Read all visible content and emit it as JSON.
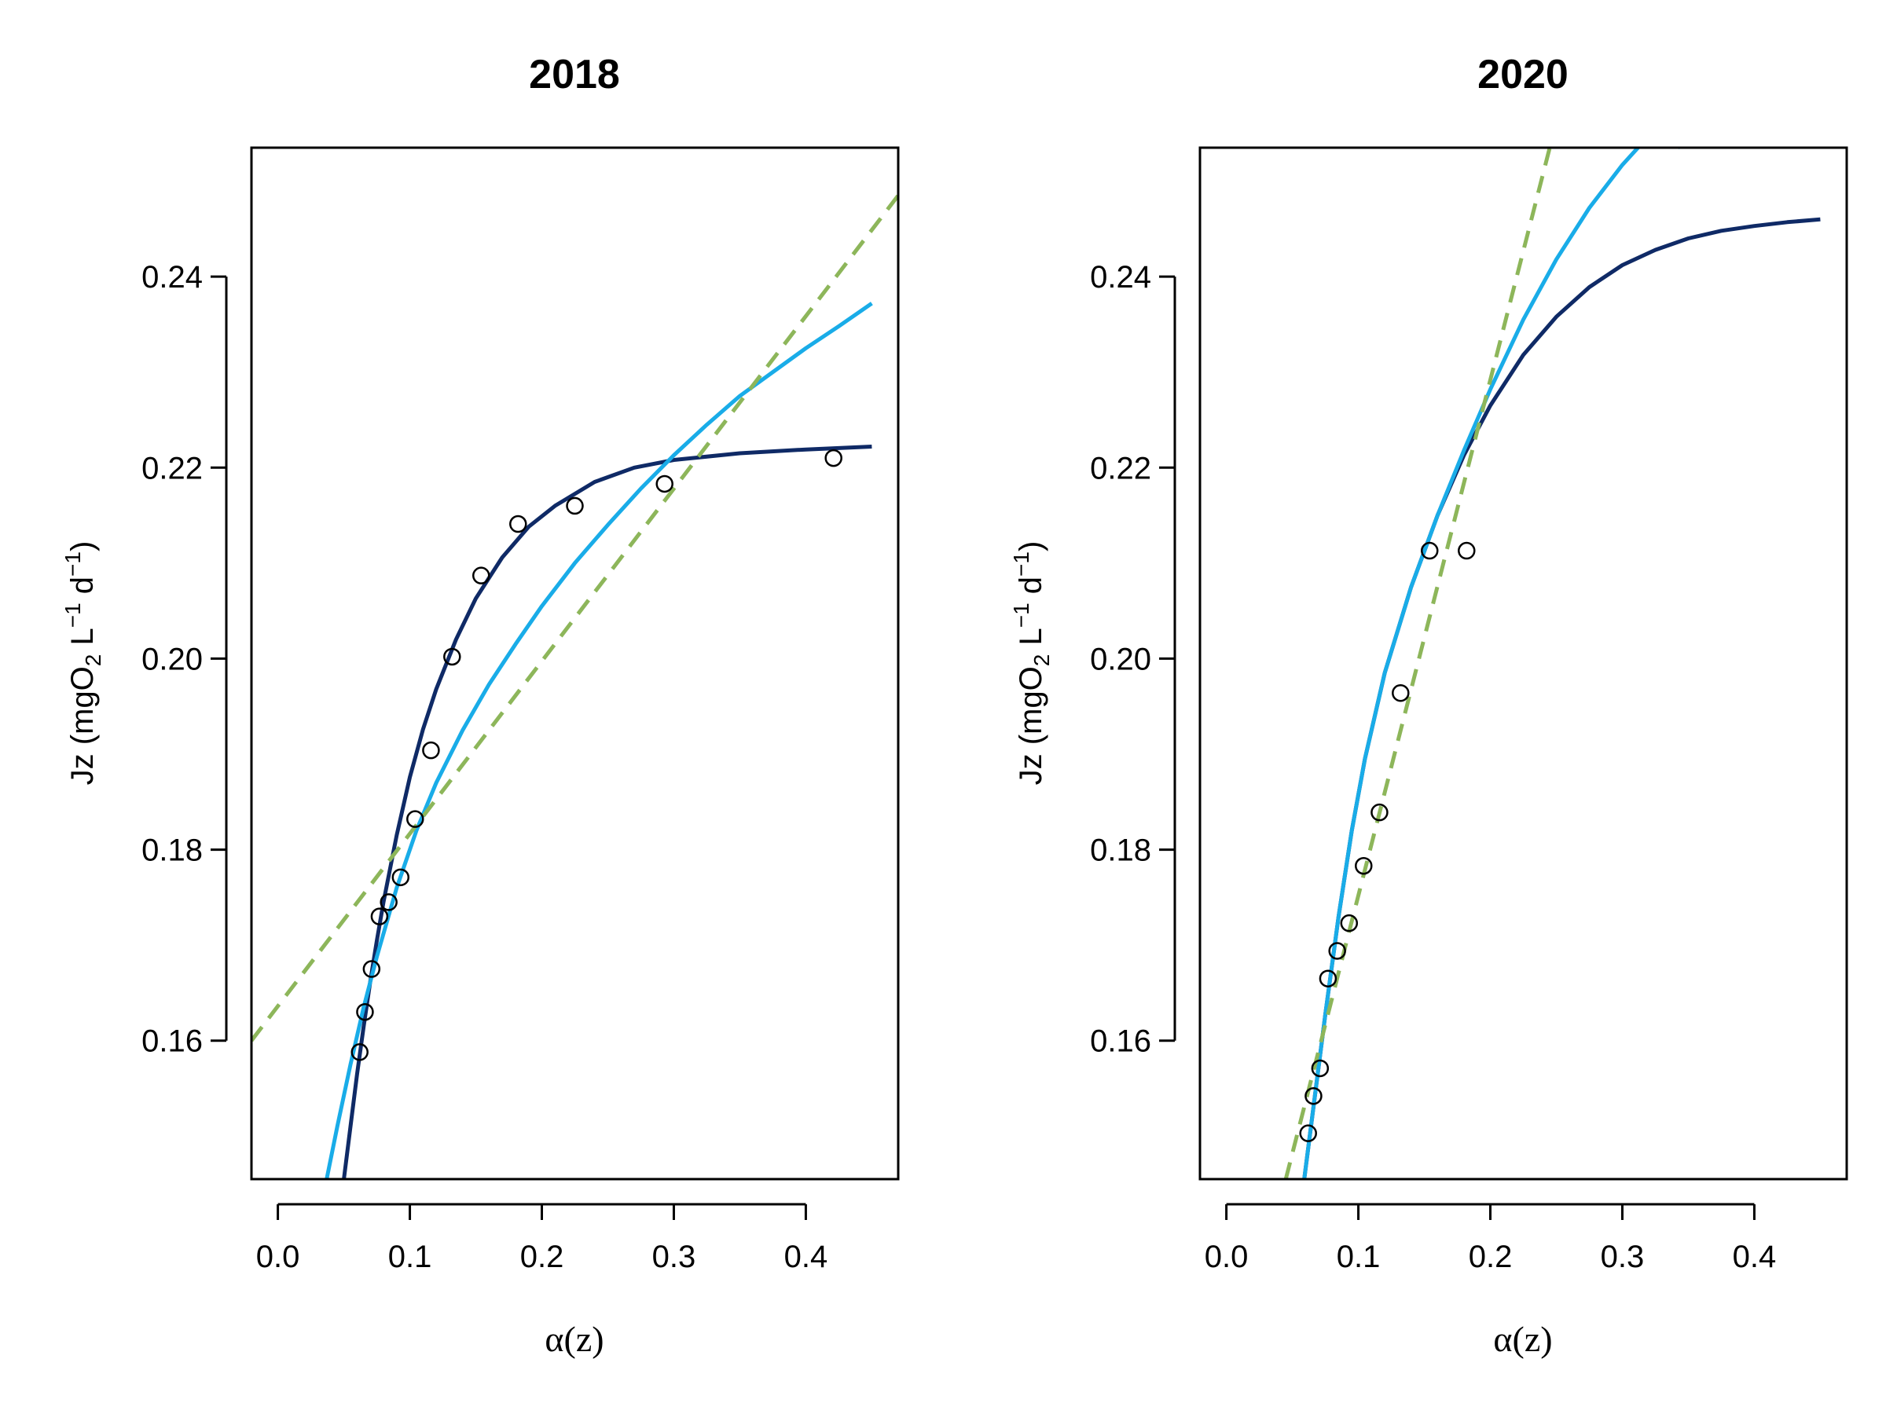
{
  "chart_data": [
    {
      "type": "scatter",
      "title": "2018",
      "xlabel": "α(z)",
      "ylabel": {
        "prefix": "Jz (mgO",
        "sub": "2",
        "mid1": " L",
        "sup1": "−1",
        "mid2": " d",
        "sup2": "−1",
        "suffix": ")"
      },
      "xlim": [
        -0.02,
        0.47
      ],
      "ylim": [
        0.1455,
        0.2535
      ],
      "xticks": [
        0.0,
        0.1,
        0.2,
        0.3,
        0.4
      ],
      "xtick_labels": [
        "0.0",
        "0.1",
        "0.2",
        "0.3",
        "0.4"
      ],
      "yticks": [
        0.16,
        0.18,
        0.2,
        0.22,
        0.24
      ],
      "ytick_labels": [
        "0.16",
        "0.18",
        "0.20",
        "0.22",
        "0.24"
      ],
      "grid": false,
      "legend": null,
      "points": {
        "x": [
          0.062,
          0.066,
          0.071,
          0.077,
          0.084,
          0.093,
          0.104,
          0.116,
          0.132,
          0.154,
          0.182,
          0.225,
          0.293,
          0.421
        ],
        "y": [
          0.1588,
          0.163,
          0.1675,
          0.173,
          0.1745,
          0.1771,
          0.1832,
          0.1904,
          0.2002,
          0.2087,
          0.2141,
          0.216,
          0.2183,
          0.221
        ]
      },
      "series": [
        {
          "style": "solid",
          "color": "#0f2a66",
          "x": [
            0.05,
            0.055,
            0.06,
            0.065,
            0.07,
            0.075,
            0.08,
            0.09,
            0.1,
            0.11,
            0.12,
            0.135,
            0.15,
            0.17,
            0.19,
            0.21,
            0.24,
            0.27,
            0.3,
            0.35,
            0.4,
            0.45
          ],
          "y": [
            0.1455,
            0.151,
            0.1565,
            0.1615,
            0.1662,
            0.1705,
            0.1745,
            0.1815,
            0.1876,
            0.1926,
            0.1968,
            0.202,
            0.2063,
            0.2106,
            0.2138,
            0.216,
            0.2185,
            0.22,
            0.2208,
            0.2215,
            0.2219,
            0.2222
          ]
        },
        {
          "style": "solid",
          "color": "#19ace8",
          "x": [
            0.037,
            0.045,
            0.055,
            0.065,
            0.075,
            0.09,
            0.105,
            0.12,
            0.14,
            0.16,
            0.18,
            0.2,
            0.225,
            0.25,
            0.275,
            0.3,
            0.325,
            0.35,
            0.375,
            0.4,
            0.425,
            0.45
          ],
          "y": [
            0.1455,
            0.151,
            0.1575,
            0.1635,
            0.1688,
            0.176,
            0.182,
            0.187,
            0.1925,
            0.1973,
            0.2015,
            0.2055,
            0.21,
            0.214,
            0.2178,
            0.2213,
            0.2245,
            0.2275,
            0.23,
            0.2325,
            0.2348,
            0.2372
          ]
        },
        {
          "style": "dashed",
          "color": "#8db65a",
          "x": [
            -0.02,
            0.47
          ],
          "y": [
            0.16,
            0.2485
          ]
        }
      ]
    },
    {
      "type": "scatter",
      "title": "2020",
      "xlabel": "α(z)",
      "ylabel": {
        "prefix": "Jz (mgO",
        "sub": "2",
        "mid1": " L",
        "sup1": "−1",
        "mid2": " d",
        "sup2": "−1",
        "suffix": ")"
      },
      "xlim": [
        -0.02,
        0.47
      ],
      "ylim": [
        0.1455,
        0.2535
      ],
      "xticks": [
        0.0,
        0.1,
        0.2,
        0.3,
        0.4
      ],
      "xtick_labels": [
        "0.0",
        "0.1",
        "0.2",
        "0.3",
        "0.4"
      ],
      "yticks": [
        0.16,
        0.18,
        0.2,
        0.22,
        0.24
      ],
      "ytick_labels": [
        "0.16",
        "0.18",
        "0.20",
        "0.22",
        "0.24"
      ],
      "grid": false,
      "legend": null,
      "points": {
        "x": [
          0.062,
          0.066,
          0.071,
          0.077,
          0.084,
          0.093,
          0.104,
          0.116,
          0.132,
          0.154,
          0.182
        ],
        "y": [
          0.1503,
          0.1542,
          0.1571,
          0.1665,
          0.1694,
          0.1723,
          0.1783,
          0.1839,
          0.1964,
          0.2113,
          0.2113
        ]
      },
      "series": [
        {
          "style": "solid",
          "color": "#0f2a66",
          "x": [
            0.059,
            0.065,
            0.075,
            0.085,
            0.095,
            0.105,
            0.12,
            0.14,
            0.16,
            0.18,
            0.2,
            0.225,
            0.25,
            0.275,
            0.3,
            0.325,
            0.35,
            0.375,
            0.4,
            0.425,
            0.45
          ],
          "y": [
            0.1455,
            0.152,
            0.1628,
            0.173,
            0.182,
            0.1895,
            0.1985,
            0.2075,
            0.215,
            0.2213,
            0.2265,
            0.2318,
            0.2358,
            0.2389,
            0.2412,
            0.2428,
            0.244,
            0.2448,
            0.2453,
            0.2457,
            0.246
          ]
        },
        {
          "style": "solid",
          "color": "#19ace8",
          "x": [
            0.059,
            0.065,
            0.075,
            0.085,
            0.095,
            0.105,
            0.12,
            0.14,
            0.16,
            0.18,
            0.2,
            0.225,
            0.25,
            0.275,
            0.3,
            0.325,
            0.344
          ],
          "y": [
            0.1455,
            0.152,
            0.1628,
            0.173,
            0.182,
            0.1895,
            0.1985,
            0.2075,
            0.215,
            0.2218,
            0.2282,
            0.2355,
            0.2418,
            0.2472,
            0.2517,
            0.2555,
            0.2535
          ]
        },
        {
          "style": "dashed",
          "color": "#8db65a",
          "x": [
            0.045,
            0.245
          ],
          "y": [
            0.1455,
            0.2535
          ]
        }
      ]
    }
  ]
}
